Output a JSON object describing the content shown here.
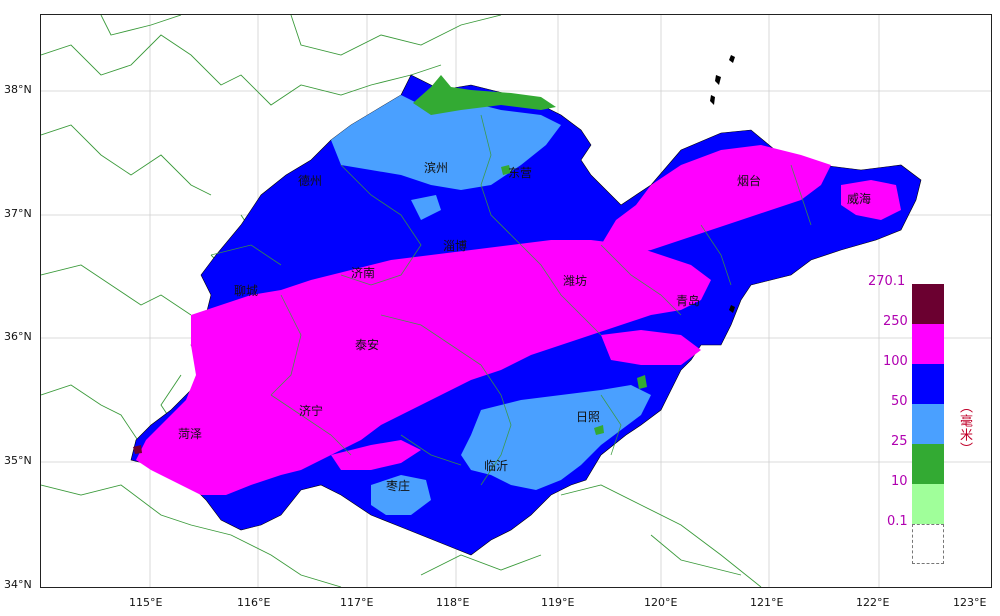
{
  "axes": {
    "lat_labels": [
      "38°N",
      "37°N",
      "36°N",
      "35°N",
      "34°N"
    ],
    "lon_labels": [
      "115°E",
      "116°E",
      "117°E",
      "118°E",
      "119°E",
      "120°E",
      "121°E",
      "122°E",
      "123°E"
    ]
  },
  "cities": [
    {
      "name": "滨州"
    },
    {
      "name": "东营"
    },
    {
      "name": "烟台"
    },
    {
      "name": "威海"
    },
    {
      "name": "德州"
    },
    {
      "name": "淄博"
    },
    {
      "name": "济南"
    },
    {
      "name": "潍坊"
    },
    {
      "name": "聊城"
    },
    {
      "name": "青岛"
    },
    {
      "name": "泰安"
    },
    {
      "name": "济宁"
    },
    {
      "name": "菏泽"
    },
    {
      "name": "日照"
    },
    {
      "name": "临沂"
    },
    {
      "name": "枣庄"
    }
  ],
  "legend": {
    "unit": "（毫米）",
    "levels": [
      "270.1",
      "250",
      "100",
      "50",
      "25",
      "10",
      "0.1"
    ],
    "colors": {
      "250_270": "#6b0030",
      "100_250": "#ff00ff",
      "50_100": "#0000ff",
      "25_50": "#4aa0ff",
      "10_25": "#33aa33",
      "0.1_10": "#a0ff9a",
      "below_0.1": "#ffffff"
    }
  },
  "colors": {
    "boundary": "#3a9a3a",
    "coast": "#000000"
  }
}
